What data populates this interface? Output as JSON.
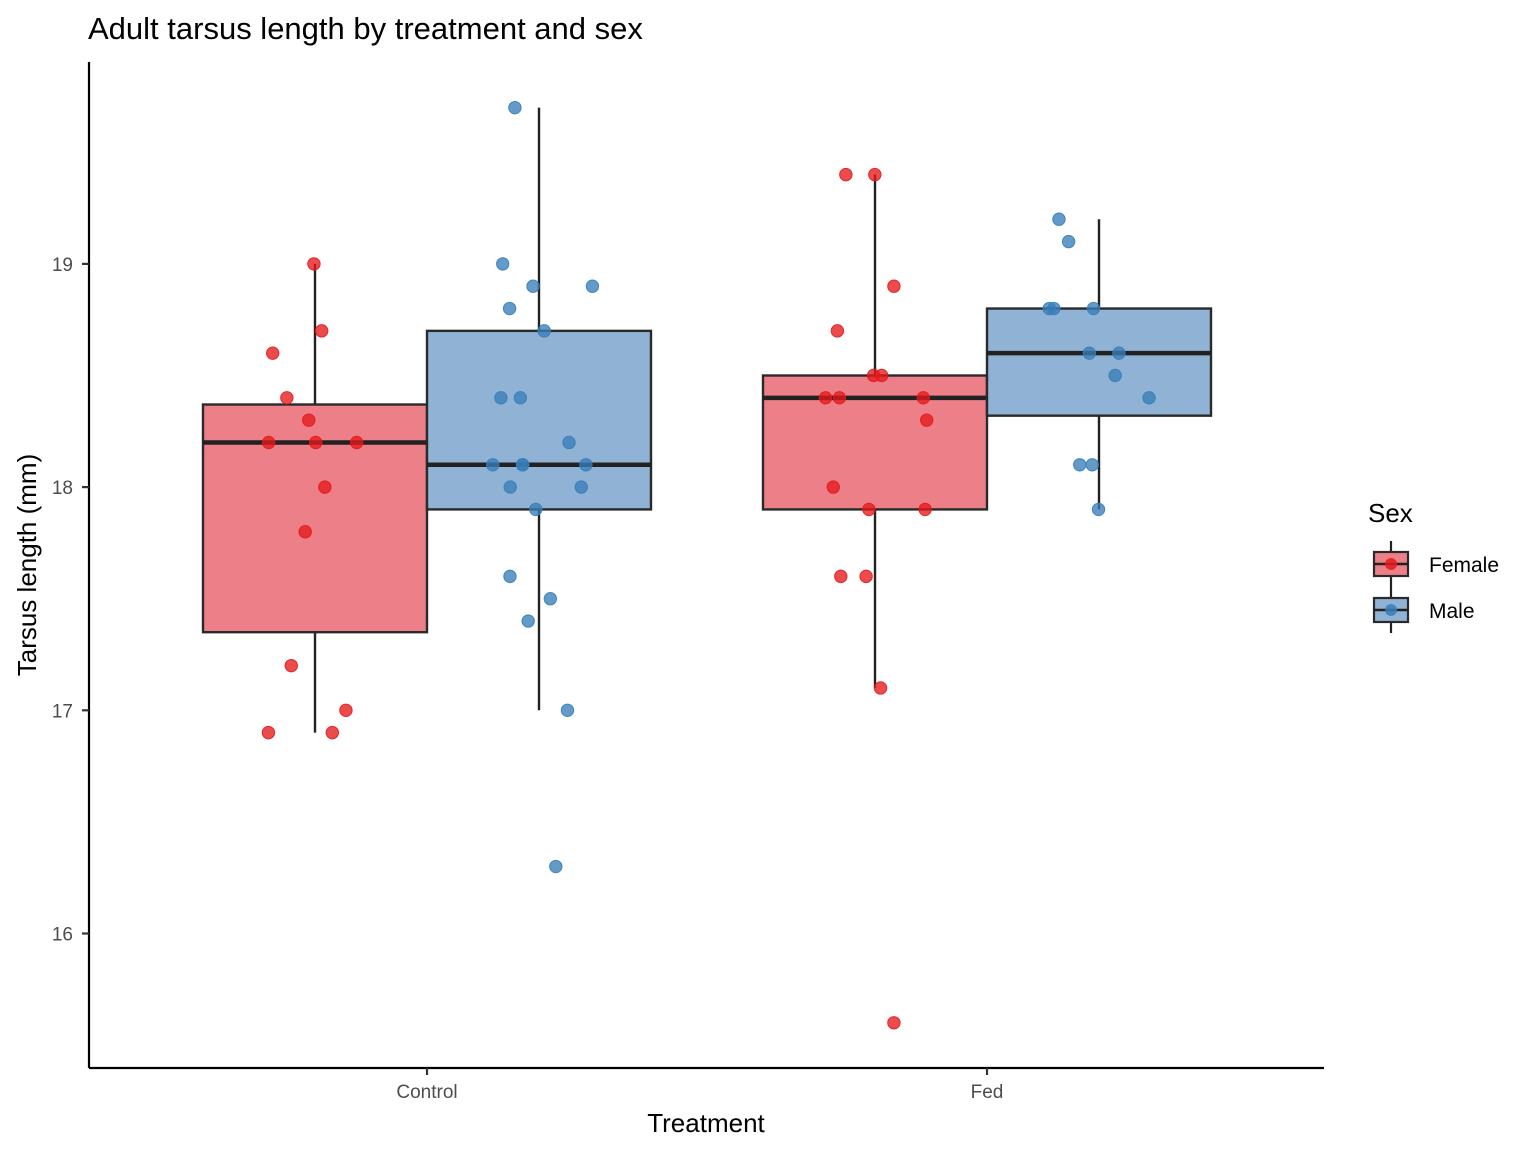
{
  "chart_data": {
    "type": "boxplot",
    "title": "Adult tarsus length by treatment and sex",
    "xlabel": "Treatment",
    "ylabel": "Tarsus length (mm)",
    "categories": [
      "Control",
      "Fed"
    ],
    "ylim": [
      15.4,
      19.85
    ],
    "yticks": [
      16,
      17,
      18,
      19
    ],
    "grid": false,
    "legend": {
      "title": "Sex",
      "position": "right"
    },
    "series": [
      {
        "name": "Female",
        "color": "#E41A1C",
        "fill": "#ED7F88",
        "boxes": [
          {
            "category": "Control",
            "min": 16.9,
            "q1": 17.35,
            "median": 18.2,
            "q3": 18.37,
            "max": 19.0
          },
          {
            "category": "Fed",
            "min": 17.1,
            "q1": 17.9,
            "median": 18.4,
            "q3": 18.5,
            "max": 19.4
          }
        ],
        "points": [
          {
            "category": "Control",
            "values": [
              19.0,
              18.7,
              18.6,
              18.4,
              18.3,
              18.2,
              18.2,
              18.2,
              18.0,
              17.8,
              17.2,
              17.0,
              16.9,
              16.9
            ]
          },
          {
            "category": "Fed",
            "values": [
              19.4,
              19.4,
              18.9,
              18.7,
              18.5,
              18.5,
              18.4,
              18.4,
              18.4,
              18.3,
              18.0,
              17.9,
              17.9,
              17.6,
              17.6,
              17.1,
              15.6
            ]
          }
        ]
      },
      {
        "name": "Male",
        "color": "#377EB8",
        "fill": "#90B2D5",
        "boxes": [
          {
            "category": "Control",
            "min": 17.0,
            "q1": 17.9,
            "median": 18.1,
            "q3": 18.7,
            "max": 19.7
          },
          {
            "category": "Fed",
            "min": 17.9,
            "q1": 18.32,
            "median": 18.6,
            "q3": 18.8,
            "max": 19.2
          }
        ],
        "points": [
          {
            "category": "Control",
            "values": [
              19.7,
              19.0,
              18.9,
              18.9,
              18.8,
              18.7,
              18.4,
              18.4,
              18.2,
              18.1,
              18.1,
              18.1,
              18.1,
              18.0,
              18.0,
              17.9,
              17.6,
              17.5,
              17.4,
              17.0,
              16.3
            ]
          },
          {
            "category": "Fed",
            "values": [
              19.2,
              19.1,
              18.8,
              18.8,
              18.8,
              18.6,
              18.6,
              18.5,
              18.4,
              18.1,
              18.1,
              17.9
            ]
          }
        ]
      }
    ]
  }
}
